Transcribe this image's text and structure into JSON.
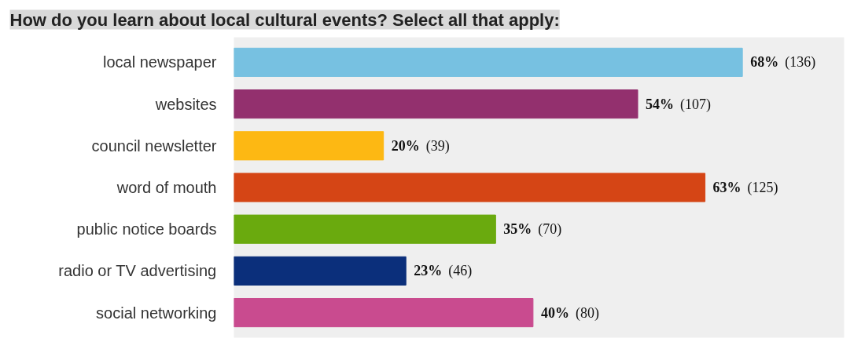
{
  "chart_data": {
    "type": "bar",
    "orientation": "horizontal",
    "title": "How do you learn about local cultural events? Select all that apply:",
    "categories": [
      "local newspaper",
      "websites",
      "council newsletter",
      "word of mouth",
      "public notice boards",
      "radio or TV advertising",
      "social networking"
    ],
    "values": [
      68,
      54,
      20,
      63,
      35,
      23,
      40
    ],
    "colors": [
      "#77c1e1",
      "#93306e",
      "#fdb813",
      "#d54515",
      "#6aaa0e",
      "#0b2f7b",
      "#c94b8f"
    ],
    "value_labels": [
      "68% (136)",
      "54% (107)",
      "20% (39)",
      "63% (125)",
      "35% (70)",
      "23% (46)",
      "40% (80)"
    ],
    "tick_labels": "y",
    "grid": false,
    "legend": false
  }
}
